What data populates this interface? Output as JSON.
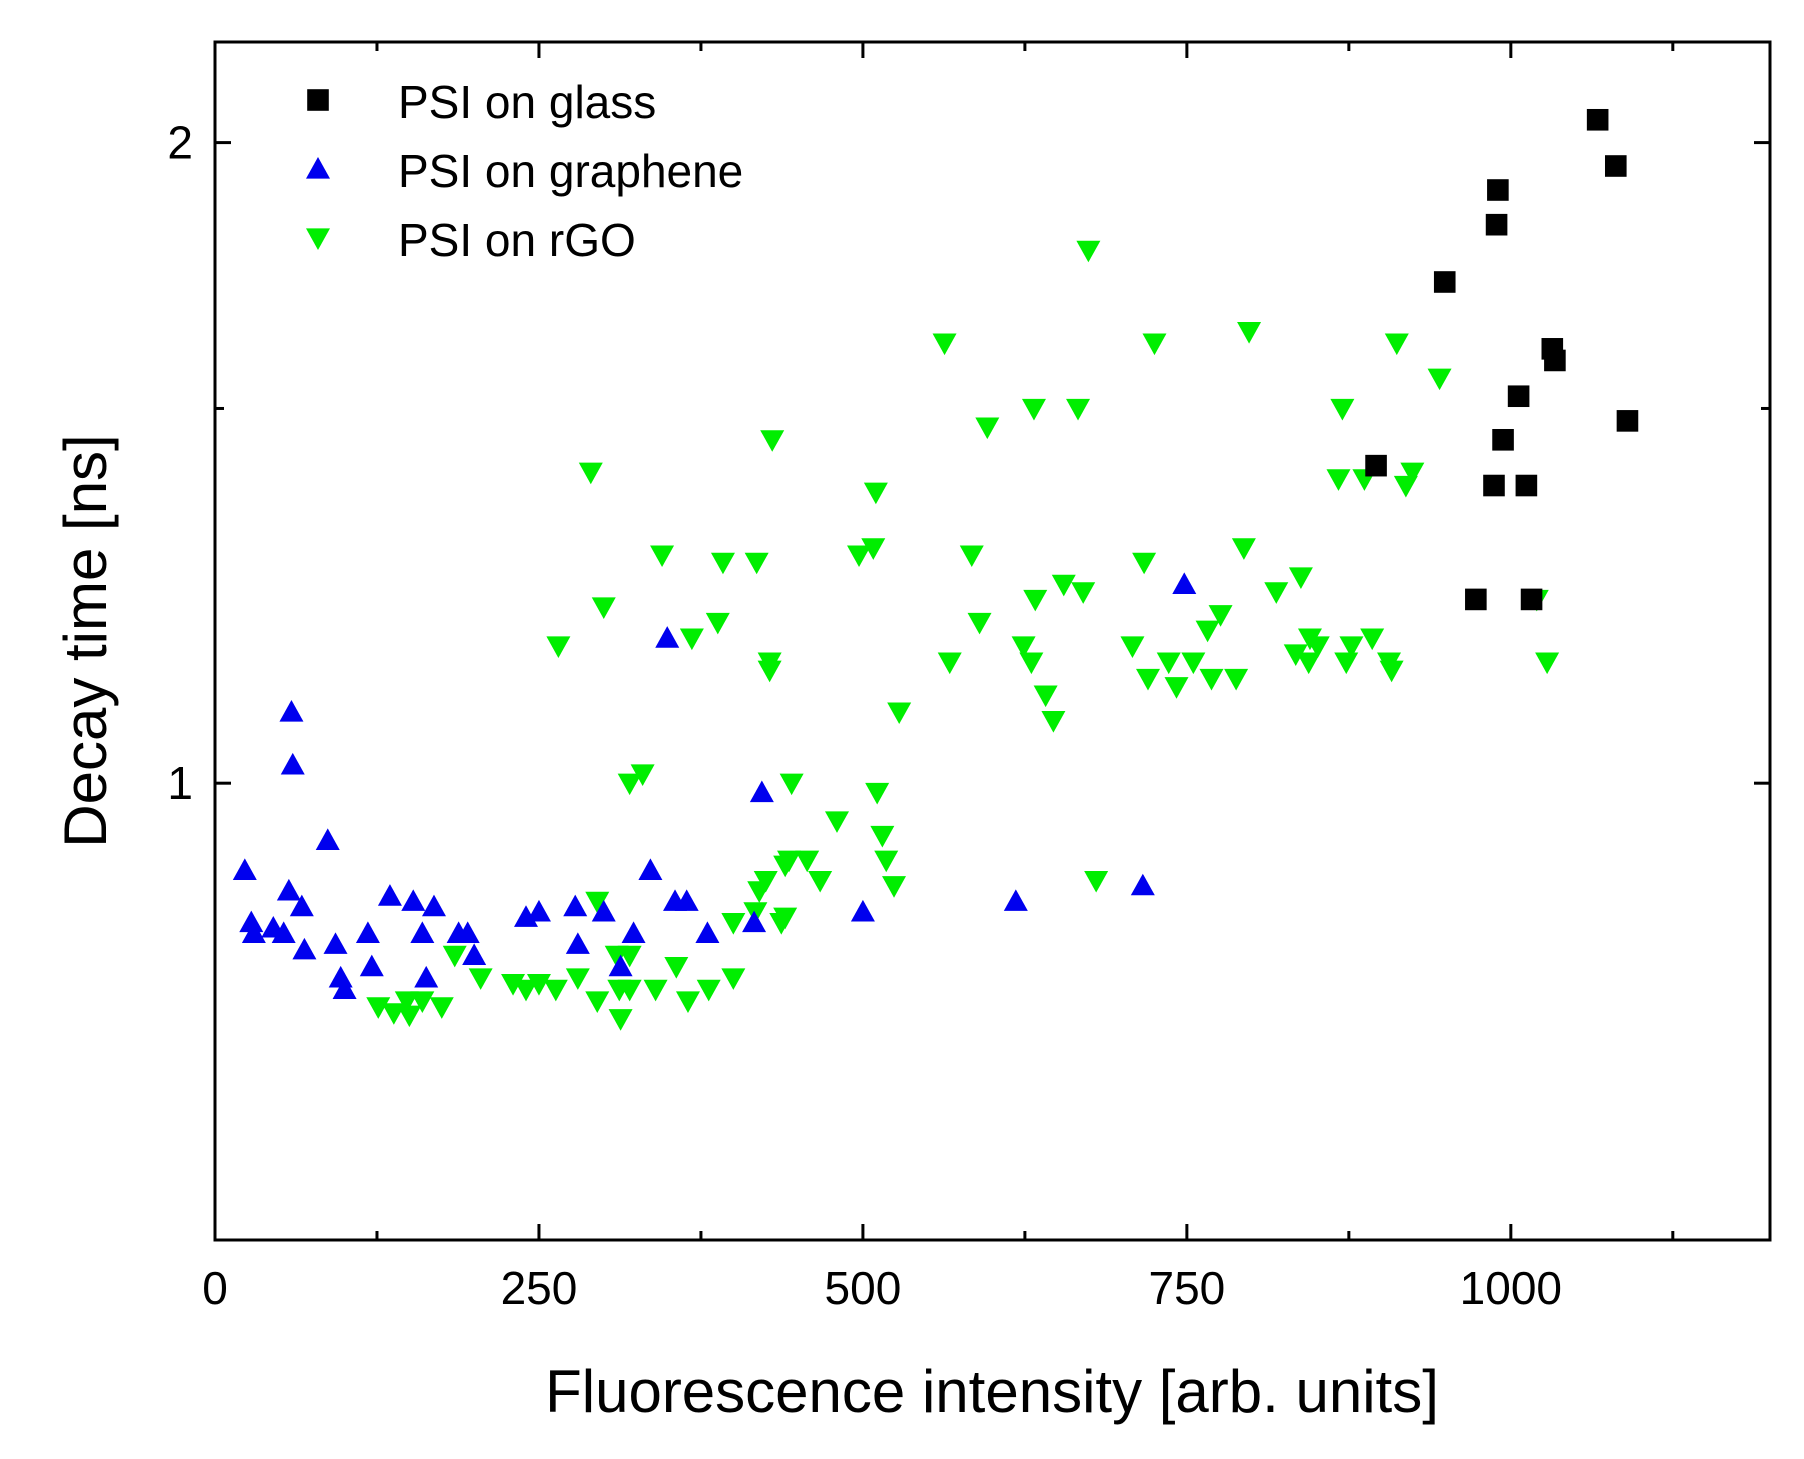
{
  "chart_data": {
    "type": "scatter",
    "title": "",
    "xlabel": "Fluorescence intensity [arb. units]",
    "ylabel": "Decay time [ns]",
    "xlim": [
      0,
      1200
    ],
    "ylim": [
      0.61,
      2.23
    ],
    "yscale": "log",
    "xticks": [
      0,
      250,
      500,
      750,
      1000
    ],
    "xtick_labels": [
      "0",
      "250",
      "500",
      "750",
      "1000"
    ],
    "yticks": [
      1,
      2
    ],
    "ytick_labels": [
      "1",
      "2"
    ],
    "legend_position": "top-left",
    "series": [
      {
        "name": "PSI on glass",
        "marker": "square",
        "color": "#000000",
        "points": [
          [
            896,
            1.41
          ],
          [
            949,
            1.72
          ],
          [
            973,
            1.22
          ],
          [
            987,
            1.38
          ],
          [
            989,
            1.83
          ],
          [
            990,
            1.9
          ],
          [
            994,
            1.45
          ],
          [
            1006,
            1.52
          ],
          [
            1012,
            1.38
          ],
          [
            1016,
            1.22
          ],
          [
            1032,
            1.6
          ],
          [
            1034,
            1.58
          ],
          [
            1067,
            2.05
          ],
          [
            1081,
            1.95
          ],
          [
            1090,
            1.48
          ]
        ]
      },
      {
        "name": "PSI on graphene",
        "marker": "triangle-up",
        "color": "#0000ee",
        "points": [
          [
            23,
            0.91
          ],
          [
            28,
            0.86
          ],
          [
            30,
            0.85
          ],
          [
            45,
            0.855
          ],
          [
            53,
            0.85
          ],
          [
            57,
            0.89
          ],
          [
            59,
            1.08
          ],
          [
            60,
            1.02
          ],
          [
            67,
            0.875
          ],
          [
            69,
            0.835
          ],
          [
            87,
            0.94
          ],
          [
            93,
            0.84
          ],
          [
            97,
            0.81
          ],
          [
            100,
            0.8
          ],
          [
            118,
            0.85
          ],
          [
            121,
            0.82
          ],
          [
            135,
            0.885
          ],
          [
            153,
            0.88
          ],
          [
            160,
            0.85
          ],
          [
            163,
            0.81
          ],
          [
            169,
            0.875
          ],
          [
            188,
            0.85
          ],
          [
            195,
            0.85
          ],
          [
            200,
            0.83
          ],
          [
            240,
            0.865
          ],
          [
            250,
            0.87
          ],
          [
            278,
            0.875
          ],
          [
            280,
            0.84
          ],
          [
            300,
            0.87
          ],
          [
            313,
            0.82
          ],
          [
            323,
            0.85
          ],
          [
            336,
            0.91
          ],
          [
            349,
            1.17
          ],
          [
            355,
            0.88
          ],
          [
            364,
            0.88
          ],
          [
            380,
            0.85
          ],
          [
            416,
            0.86
          ],
          [
            422,
            0.99
          ],
          [
            500,
            0.87
          ],
          [
            618,
            0.88
          ],
          [
            716,
            0.895
          ],
          [
            748,
            1.24
          ]
        ]
      },
      {
        "name": "PSI on rGO",
        "marker": "triangle-down",
        "color": "#00ee00",
        "points": [
          [
            126,
            0.785
          ],
          [
            138,
            0.78
          ],
          [
            148,
            0.79
          ],
          [
            150,
            0.778
          ],
          [
            160,
            0.79
          ],
          [
            175,
            0.785
          ],
          [
            185,
            0.83
          ],
          [
            205,
            0.81
          ],
          [
            230,
            0.805
          ],
          [
            240,
            0.8
          ],
          [
            250,
            0.805
          ],
          [
            263,
            0.8
          ],
          [
            265,
            1.16
          ],
          [
            280,
            0.81
          ],
          [
            290,
            1.4
          ],
          [
            295,
            0.79
          ],
          [
            295,
            0.88
          ],
          [
            300,
            1.21
          ],
          [
            310,
            0.83
          ],
          [
            312,
            0.8
          ],
          [
            313,
            0.775
          ],
          [
            320,
            0.8
          ],
          [
            320,
            0.83
          ],
          [
            320,
            1.0
          ],
          [
            330,
            1.01
          ],
          [
            340,
            0.8
          ],
          [
            345,
            1.28
          ],
          [
            356,
            0.82
          ],
          [
            365,
            0.79
          ],
          [
            368,
            1.17
          ],
          [
            381,
            0.8
          ],
          [
            388,
            1.19
          ],
          [
            392,
            1.27
          ],
          [
            400,
            0.81
          ],
          [
            400,
            0.86
          ],
          [
            417,
            0.87
          ],
          [
            418,
            1.27
          ],
          [
            420,
            0.89
          ],
          [
            425,
            0.9
          ],
          [
            428,
            1.14
          ],
          [
            428,
            1.13
          ],
          [
            430,
            1.45
          ],
          [
            437,
            0.86
          ],
          [
            440,
            0.865
          ],
          [
            440,
            0.915
          ],
          [
            443,
            0.92
          ],
          [
            445,
            1.0
          ],
          [
            457,
            0.92
          ],
          [
            467,
            0.9
          ],
          [
            480,
            0.96
          ],
          [
            497,
            1.28
          ],
          [
            508,
            1.29
          ],
          [
            510,
            1.37
          ],
          [
            511,
            0.99
          ],
          [
            515,
            0.945
          ],
          [
            518,
            0.92
          ],
          [
            524,
            0.895
          ],
          [
            528,
            1.08
          ],
          [
            563,
            1.61
          ],
          [
            567,
            1.14
          ],
          [
            584,
            1.28
          ],
          [
            590,
            1.19
          ],
          [
            596,
            1.47
          ],
          [
            624,
            1.16
          ],
          [
            630,
            1.14
          ],
          [
            632,
            1.5
          ],
          [
            633,
            1.22
          ],
          [
            641,
            1.1
          ],
          [
            647,
            1.07
          ],
          [
            655,
            1.24
          ],
          [
            666,
            1.5
          ],
          [
            670,
            1.23
          ],
          [
            674,
            1.78
          ],
          [
            680,
            0.9
          ],
          [
            708,
            1.16
          ],
          [
            717,
            1.27
          ],
          [
            720,
            1.12
          ],
          [
            725,
            1.61
          ],
          [
            736,
            1.14
          ],
          [
            742,
            1.11
          ],
          [
            755,
            1.14
          ],
          [
            766,
            1.18
          ],
          [
            769,
            1.12
          ],
          [
            776,
            1.2
          ],
          [
            788,
            1.12
          ],
          [
            794,
            1.29
          ],
          [
            798,
            1.63
          ],
          [
            819,
            1.23
          ],
          [
            834,
            1.15
          ],
          [
            838,
            1.25
          ],
          [
            844,
            1.14
          ],
          [
            845,
            1.17
          ],
          [
            851,
            1.16
          ],
          [
            867,
            1.39
          ],
          [
            870,
            1.5
          ],
          [
            873,
            1.14
          ],
          [
            877,
            1.16
          ],
          [
            887,
            1.39
          ],
          [
            893,
            1.17
          ],
          [
            906,
            1.14
          ],
          [
            908,
            1.13
          ],
          [
            912,
            1.61
          ],
          [
            919,
            1.38
          ],
          [
            924,
            1.4
          ],
          [
            945,
            1.55
          ],
          [
            1020,
            1.22
          ],
          [
            1028,
            1.14
          ]
        ]
      }
    ]
  }
}
